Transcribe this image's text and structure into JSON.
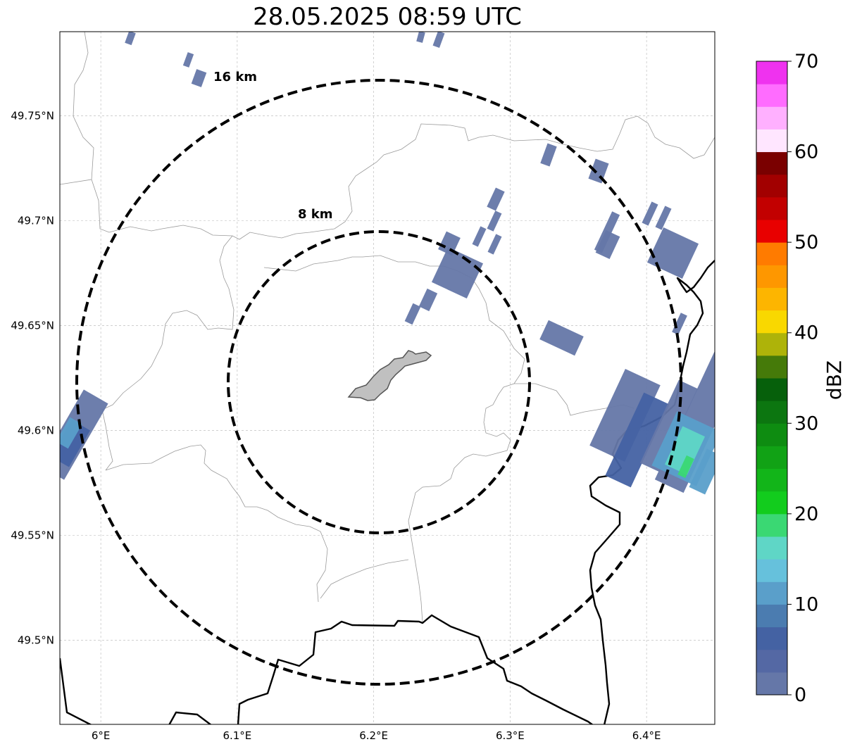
{
  "title": "28.05.2025 08:59 UTC",
  "map": {
    "lon_range": [
      5.97,
      6.45
    ],
    "lat_range": [
      49.46,
      49.79
    ],
    "x_ticks": [
      "6°E",
      "6.1°E",
      "6.2°E",
      "6.3°E",
      "6.4°E"
    ],
    "x_tick_values": [
      6.0,
      6.1,
      6.2,
      6.3,
      6.4
    ],
    "y_ticks": [
      "49.75°N",
      "49.7°N",
      "49.65°N",
      "49.6°N",
      "49.55°N",
      "49.5°N"
    ],
    "y_tick_values": [
      49.75,
      49.7,
      49.65,
      49.6,
      49.55,
      49.5
    ],
    "grid": true,
    "center": {
      "lon": 6.202,
      "lat": 49.622
    },
    "rings": [
      {
        "label": "8 km",
        "radius_km": 8
      },
      {
        "label": "16 km",
        "radius_km": 16
      }
    ]
  },
  "colorbar": {
    "label": "dBZ",
    "tick_labels": [
      "0",
      "10",
      "20",
      "30",
      "40",
      "50",
      "60",
      "70"
    ],
    "colors": [
      "#6577a8",
      "#5468a4",
      "#4462a3",
      "#4b7cb0",
      "#5a9fca",
      "#66c1dc",
      "#5fd6c6",
      "#3ad873",
      "#12cc1d",
      "#12b519",
      "#11a215",
      "#0e8c11",
      "#0c7610",
      "#06600b",
      "#457a09",
      "#aeb309",
      "#f9d800",
      "#fdb500",
      "#fe9700",
      "#ff7b00",
      "#e80000",
      "#c20000",
      "#a20000",
      "#7a0000",
      "#ffe6ff",
      "#ffb0ff",
      "#ff6cff",
      "#ef32ef"
    ]
  },
  "colors": {
    "rain_light": "#6577a8",
    "rain_mid": "#4462a3",
    "rain_cyan": "#5a9fca",
    "rain_teal": "#5fd6c6",
    "rain_green": "#3ad873",
    "city_fill": "#c0c0c0",
    "border": "#000000",
    "admin_line": "#9a9a9a"
  }
}
